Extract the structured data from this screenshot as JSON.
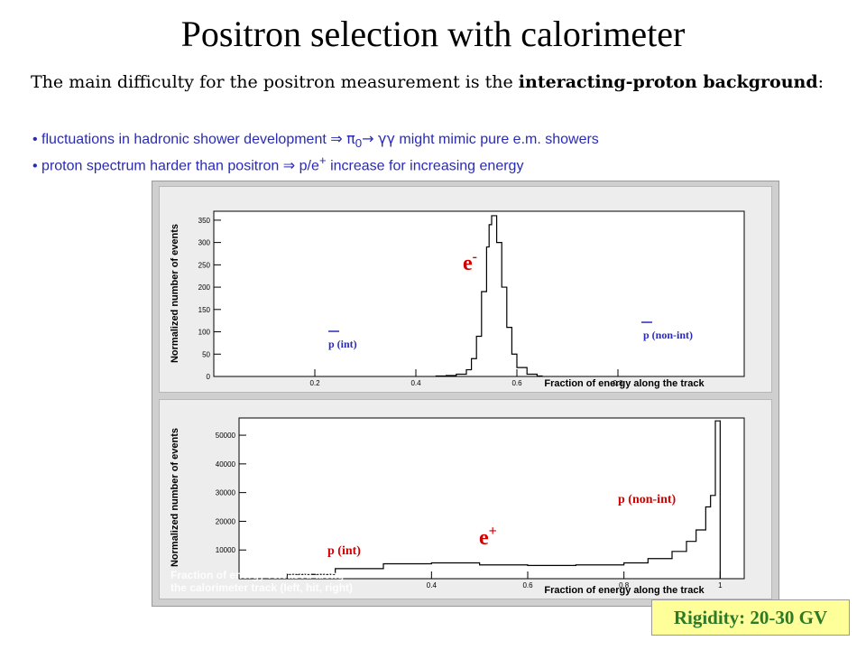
{
  "title": "Positron selection with calorimeter",
  "intro": {
    "text_before": "The main difficulty for the positron measurement is the ",
    "bold": "interacting-proton background",
    "text_after": ":"
  },
  "bullets": [
    {
      "bullet": "•",
      "before": " fluctuations in hadronic shower development ",
      "arrow": "⇒",
      "pi": "π",
      "pisub": "0",
      "to": "→",
      "gg": "γγ",
      "after": " might mimic pure e.m. showers"
    },
    {
      "bullet": "•",
      "before": " proton spectrum harder than  positron ",
      "arrow": "⇒",
      "after_a": " p/e",
      "sup": "+",
      "after_b": " increase for increasing energy"
    }
  ],
  "panel_top": {
    "ylabel": "Normalized number of events",
    "xlabel": "Fraction of energy along the track",
    "ytick_labels": [
      "350",
      "300",
      "250",
      "200",
      "150",
      "100",
      "50",
      "0"
    ],
    "xtick_labels": [
      "0.2",
      "0.4",
      "0.6",
      "0.8"
    ],
    "label_e": "e",
    "label_e_sup": "-",
    "label_pint": "p (int)",
    "label_pnonint": "p (non-int)"
  },
  "panel_bottom": {
    "ylabel": "Normalized number of events",
    "xlabel": "Fraction of energy along the track",
    "ytick_labels": [
      "50000",
      "40000",
      "30000",
      "20000",
      "10000"
    ],
    "xtick_labels": [
      "0.4",
      "0.6",
      "0.8",
      "1"
    ],
    "label_e": "e",
    "label_e_sup": "+",
    "label_pint": "p (int)",
    "label_pnonint": "p (non-int)",
    "note_line1": "Fraction of energy released along",
    "note_line2": "the calorimeter track (left, hit, right)"
  },
  "rigidity": "Rigidity: 20-30 GV",
  "colors": {
    "blue": "#2a2ab8",
    "red": "#d00000",
    "green": "#2a7a2a",
    "badge": "#ffff99"
  },
  "chart_data": [
    {
      "type": "line",
      "xlabel": "Fraction of energy along the track",
      "ylabel": "Normalized number of events",
      "xlim": [
        0,
        1.05
      ],
      "ylim": [
        0,
        370
      ],
      "series": [
        {
          "name": "e-",
          "x": [
            0.44,
            0.46,
            0.48,
            0.5,
            0.51,
            0.52,
            0.53,
            0.54,
            0.545,
            0.55,
            0.56,
            0.57,
            0.58,
            0.59,
            0.6,
            0.62,
            0.64
          ],
          "y": [
            1,
            2,
            5,
            15,
            40,
            90,
            190,
            290,
            340,
            360,
            300,
            200,
            110,
            50,
            20,
            5,
            1
          ]
        }
      ]
    },
    {
      "type": "line",
      "xlabel": "Fraction of energy along the track",
      "ylabel": "Normalized number of events",
      "xlim": [
        0,
        1.05
      ],
      "ylim": [
        0,
        56000
      ],
      "series": [
        {
          "name": "p",
          "x": [
            0.1,
            0.2,
            0.3,
            0.4,
            0.5,
            0.6,
            0.7,
            0.8,
            0.85,
            0.9,
            0.93,
            0.95,
            0.97,
            0.98,
            0.99
          ],
          "y": [
            1500,
            3500,
            5200,
            5500,
            4800,
            4600,
            4800,
            5500,
            7000,
            9500,
            13000,
            17000,
            25000,
            29000,
            55000
          ]
        }
      ]
    }
  ]
}
